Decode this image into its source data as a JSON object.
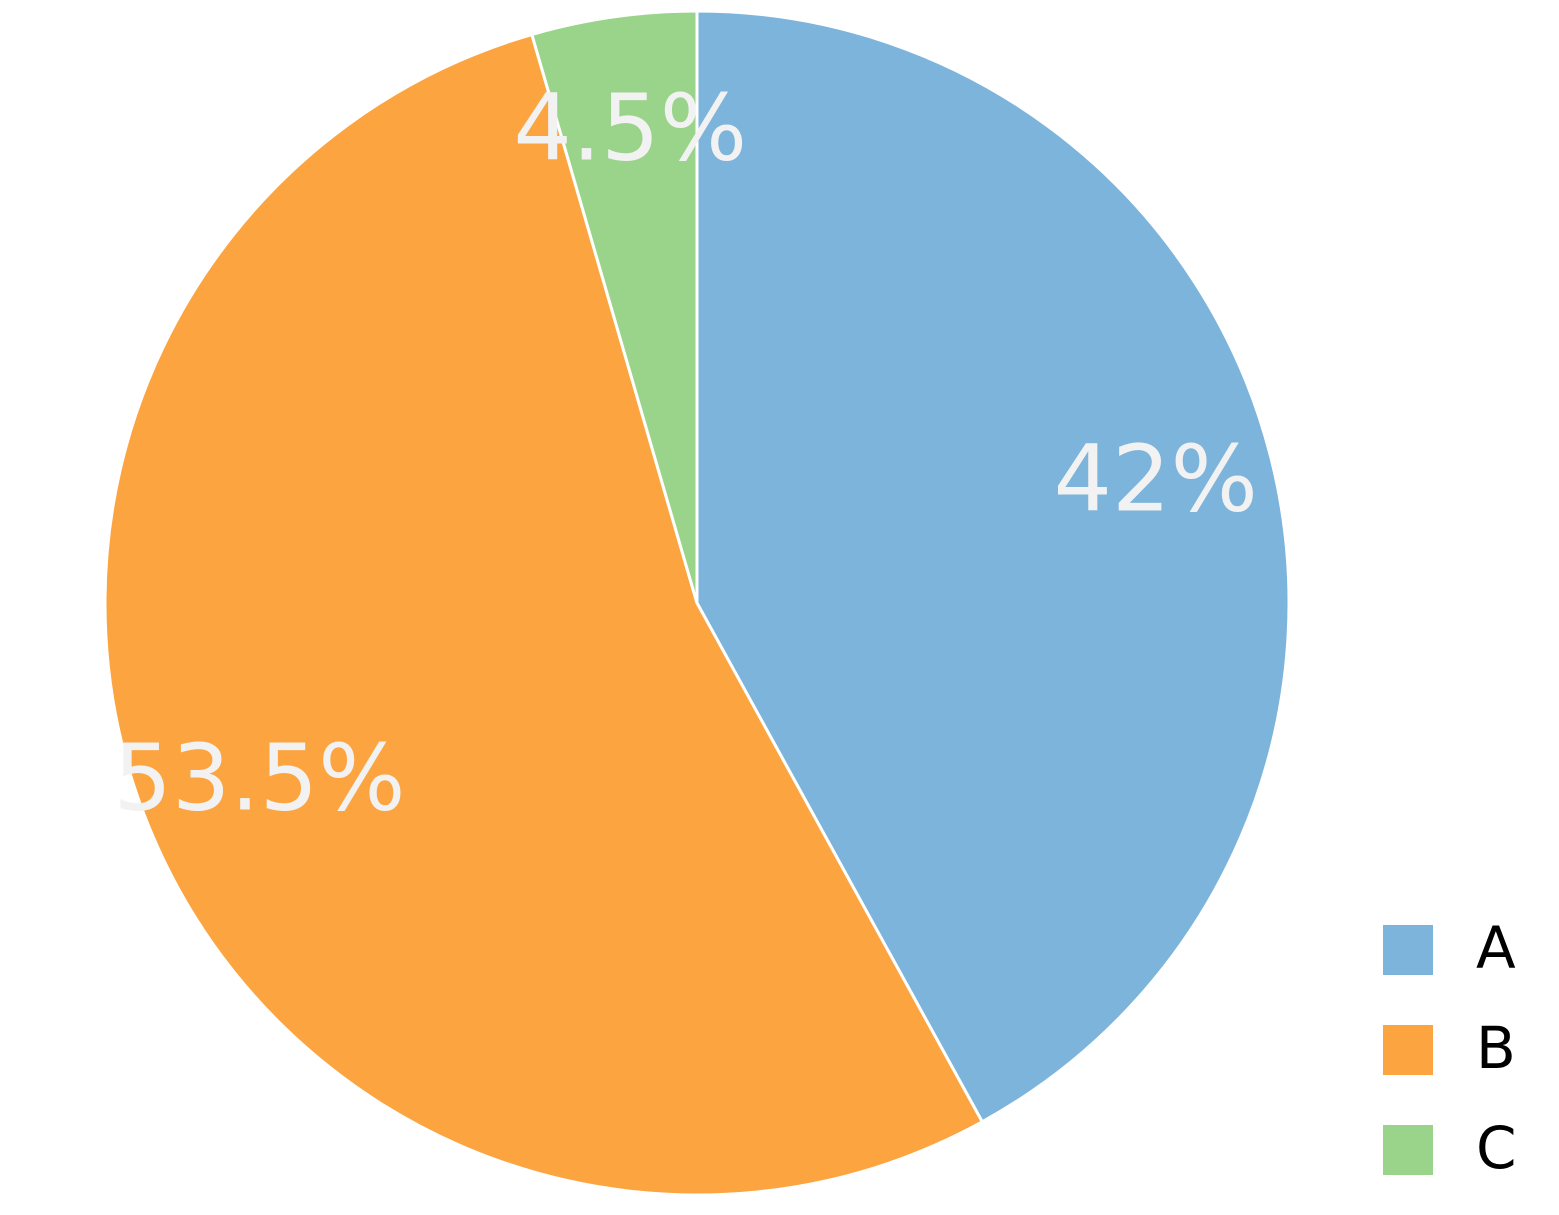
{
  "chart_data": {
    "type": "pie",
    "categories": [
      "A",
      "B",
      "C"
    ],
    "values": [
      42,
      53.5,
      4.5
    ],
    "value_labels": [
      "42%",
      "53.5%",
      "4.5%"
    ],
    "colors": [
      "#7cb4dc",
      "#fca43f",
      "#9ad48b"
    ],
    "legend": "bottom-right"
  }
}
